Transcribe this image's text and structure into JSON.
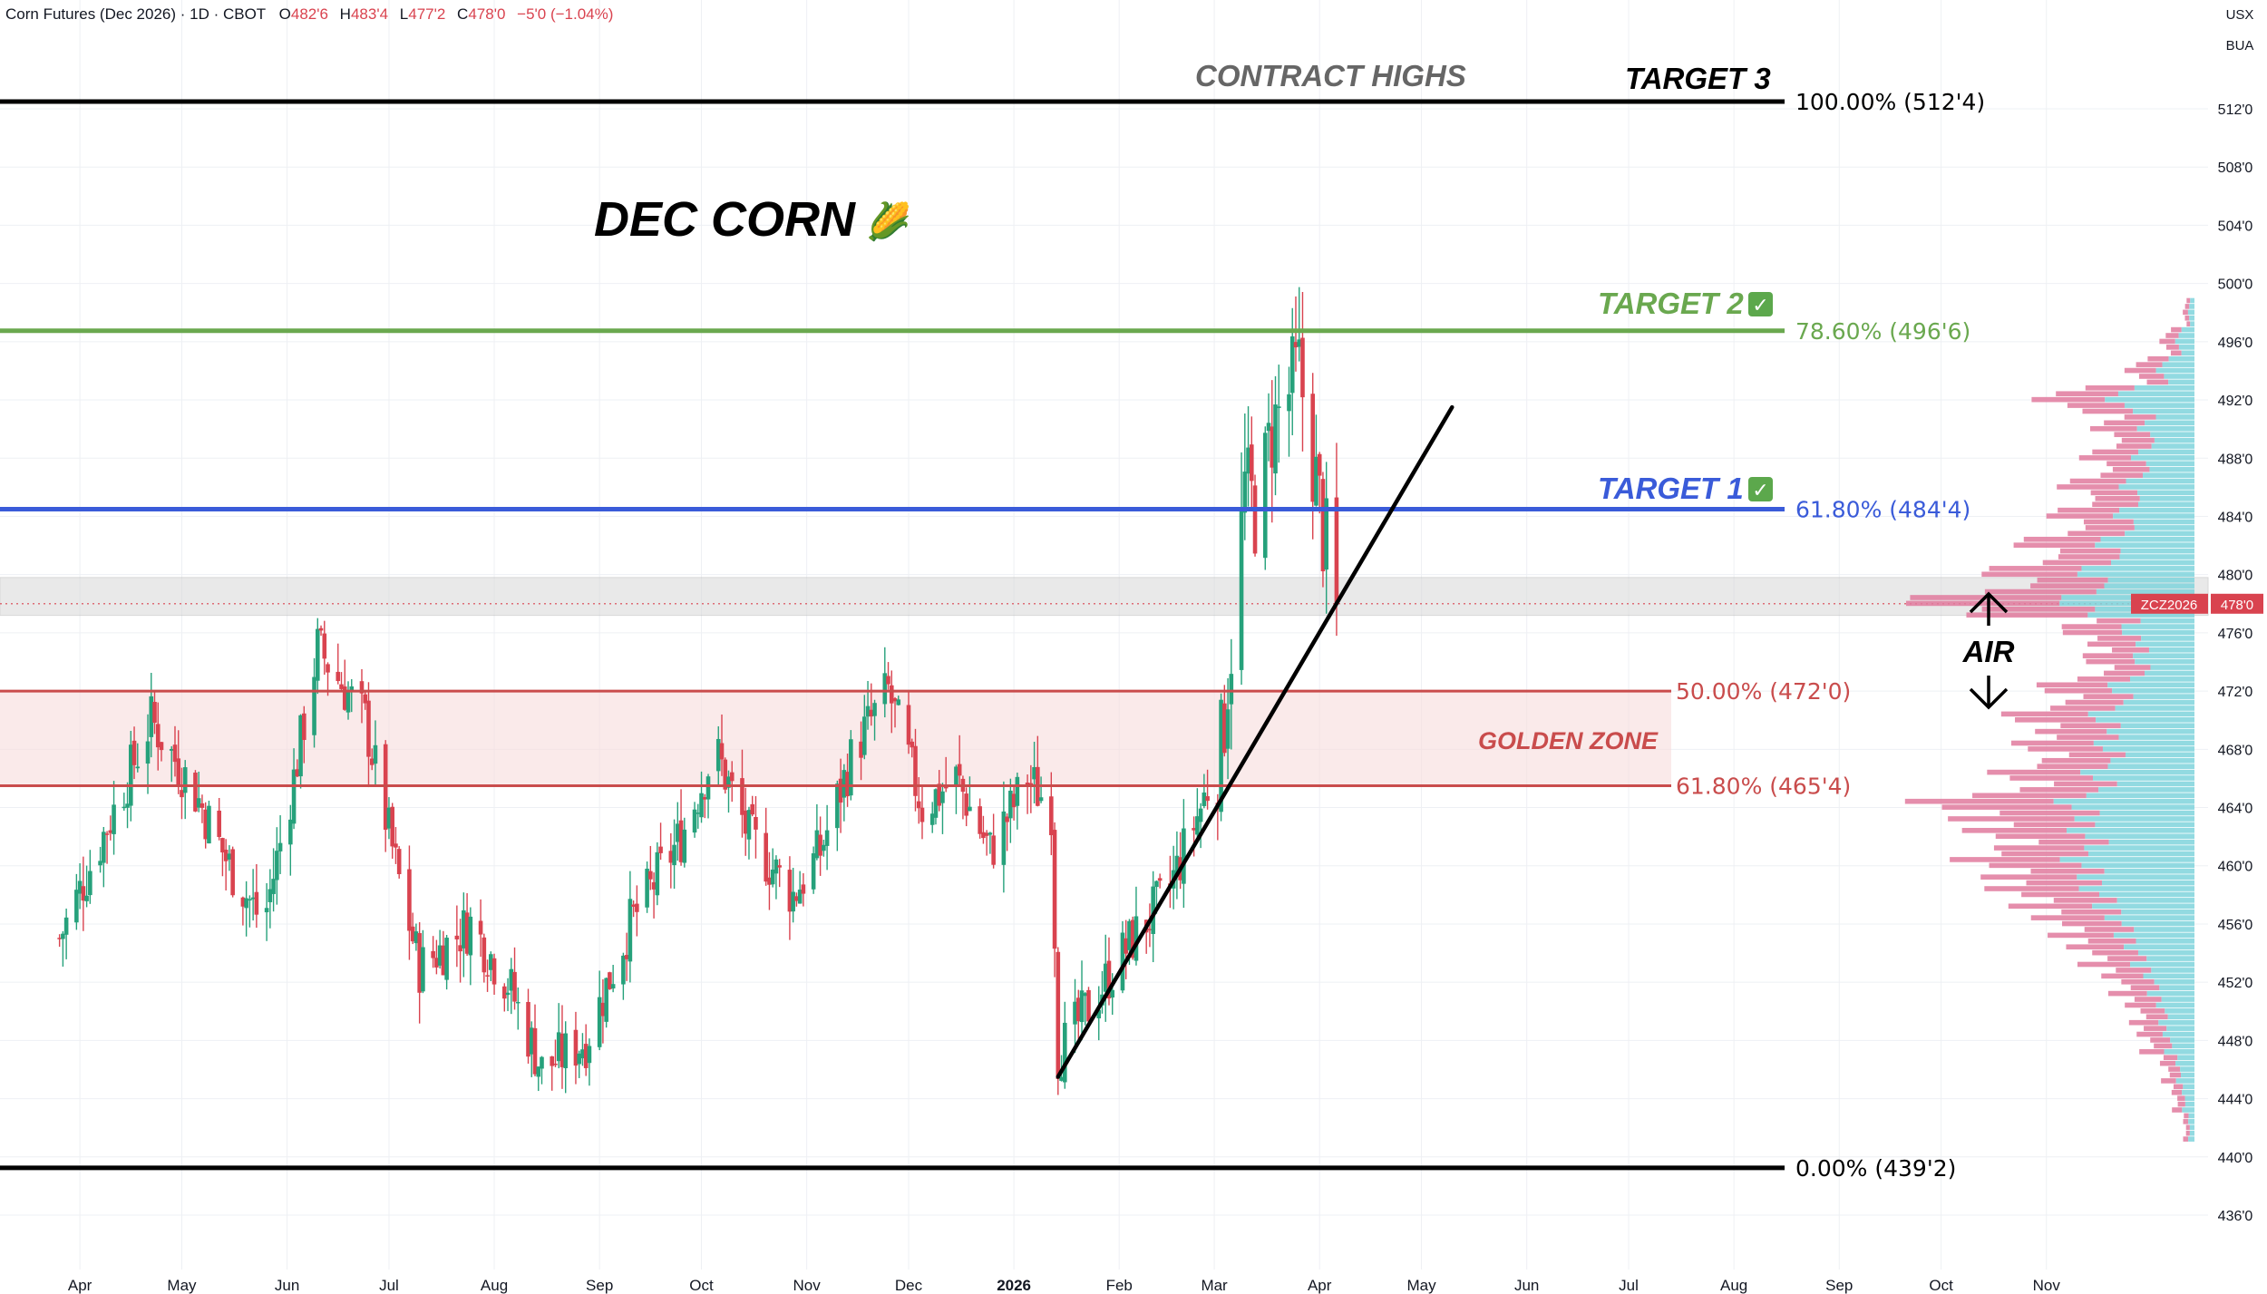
{
  "header": {
    "symbol_text": "Corn Futures (Dec 2026) · 1D · CBOT",
    "o_label": "O",
    "o_value": "482'6",
    "h_label": "H",
    "h_value": "483'4",
    "l_label": "L",
    "l_value": "477'2",
    "c_label": "C",
    "c_value": "478'0",
    "change": "−5'0 (−1.04%)",
    "currency": "USX",
    "unit": "BUA"
  },
  "annotations": {
    "title": "DEC CORN",
    "title_emoji": "🌽",
    "contract_highs": "CONTRACT HIGHS",
    "target3": "TARGET 3",
    "target2": "TARGET 2",
    "target1": "TARGET 1",
    "check": "✓",
    "golden_zone": "GOLDEN ZONE",
    "air": "AIR"
  },
  "levels": [
    {
      "id": "fib100",
      "label": "100.00% (512'4)",
      "price": 512.5,
      "color": "#000000"
    },
    {
      "id": "fib786",
      "label": "78.60% (496'6)",
      "price": 496.75,
      "color": "#6aa84f"
    },
    {
      "id": "fib618",
      "label": "61.80% (484'4)",
      "price": 484.5,
      "color": "#3a5bd9"
    },
    {
      "id": "fib50",
      "label": "50.00% (472'0)",
      "price": 472.0,
      "color": "#c94c4c"
    },
    {
      "id": "fib618b",
      "label": "61.80% (465'4)",
      "price": 465.5,
      "color": "#c94c4c"
    },
    {
      "id": "fib0",
      "label": "0.00% (439'2)",
      "price": 439.25,
      "color": "#000000"
    }
  ],
  "price_badge": {
    "symbol": "ZCZ2026",
    "price": "478'0",
    "value": 478.0
  },
  "colors": {
    "up": "#26a17b",
    "down": "#d9434f",
    "profile_buy": "#7fd3dc",
    "profile_sell": "#e07a9e",
    "grid": "#eef0f4"
  },
  "chart_data": {
    "type": "candlestick",
    "title": "Corn Futures (Dec 2026) · 1D · CBOT",
    "y_axis": {
      "ticks": [
        "512'0",
        "508'0",
        "504'0",
        "500'0",
        "496'0",
        "492'0",
        "488'0",
        "484'0",
        "480'0",
        "476'0",
        "472'0",
        "468'0",
        "464'0",
        "460'0",
        "456'0",
        "452'0",
        "448'0",
        "444'0",
        "440'0",
        "436'0"
      ],
      "tick_values": [
        512,
        508,
        504,
        500,
        496,
        492,
        488,
        484,
        480,
        476,
        472,
        468,
        464,
        460,
        456,
        452,
        448,
        444,
        440,
        436
      ],
      "range": [
        433,
        516.5
      ]
    },
    "x_axis": {
      "ticks": [
        "Apr",
        "May",
        "Jun",
        "Jul",
        "Aug",
        "Sep",
        "Oct",
        "Nov",
        "Dec",
        "2026",
        "Feb",
        "Mar",
        "Apr",
        "May",
        "Jun",
        "Jul",
        "Aug",
        "Sep",
        "Oct",
        "Nov"
      ],
      "bold_tick": "2026"
    },
    "price_path": [
      {
        "date": "2025-03-26",
        "close": 455
      },
      {
        "date": "2025-04-15",
        "close": 466
      },
      {
        "date": "2025-04-22",
        "close": 470
      },
      {
        "date": "2025-05-05",
        "close": 465
      },
      {
        "date": "2025-05-15",
        "close": 460
      },
      {
        "date": "2025-05-25",
        "close": 456
      },
      {
        "date": "2025-06-03",
        "close": 466
      },
      {
        "date": "2025-06-10",
        "close": 475
      },
      {
        "date": "2025-06-24",
        "close": 470
      },
      {
        "date": "2025-07-03",
        "close": 460
      },
      {
        "date": "2025-07-10",
        "close": 453
      },
      {
        "date": "2025-07-25",
        "close": 456
      },
      {
        "date": "2025-08-05",
        "close": 452
      },
      {
        "date": "2025-08-15",
        "close": 446
      },
      {
        "date": "2025-08-28",
        "close": 448
      },
      {
        "date": "2025-09-10",
        "close": 456
      },
      {
        "date": "2025-09-25",
        "close": 462
      },
      {
        "date": "2025-10-05",
        "close": 468
      },
      {
        "date": "2025-10-15",
        "close": 462
      },
      {
        "date": "2025-10-28",
        "close": 458
      },
      {
        "date": "2025-11-05",
        "close": 461
      },
      {
        "date": "2025-11-15",
        "close": 468
      },
      {
        "date": "2025-11-25",
        "close": 472
      },
      {
        "date": "2025-12-05",
        "close": 464
      },
      {
        "date": "2025-12-15",
        "close": 466
      },
      {
        "date": "2025-12-25",
        "close": 461
      },
      {
        "date": "2026-01-05",
        "close": 466
      },
      {
        "date": "2026-01-12",
        "close": 464
      },
      {
        "date": "2026-01-14",
        "close": 447
      },
      {
        "date": "2026-01-25",
        "close": 451
      },
      {
        "date": "2026-02-05",
        "close": 455
      },
      {
        "date": "2026-02-15",
        "close": 458
      },
      {
        "date": "2026-02-25",
        "close": 464
      },
      {
        "date": "2026-03-03",
        "close": 468
      },
      {
        "date": "2026-03-05",
        "close": 473
      },
      {
        "date": "2026-03-08",
        "close": 480
      },
      {
        "date": "2026-03-10",
        "close": 486
      },
      {
        "date": "2026-03-14",
        "close": 484
      },
      {
        "date": "2026-03-18",
        "close": 490
      },
      {
        "date": "2026-03-22",
        "close": 492
      },
      {
        "date": "2026-03-26",
        "close": 494
      },
      {
        "date": "2026-03-30",
        "close": 488
      },
      {
        "date": "2026-04-02",
        "close": 483
      },
      {
        "date": "2026-04-06",
        "close": 478
      }
    ],
    "series": [
      {
        "values": [
          {
            "price": 498,
            "volume": 1
          },
          {
            "price": 496,
            "volume": 3
          },
          {
            "price": 494,
            "volume": 6
          },
          {
            "price": 492,
            "volume": 14
          },
          {
            "price": 490,
            "volume": 9
          },
          {
            "price": 488,
            "volume": 10
          },
          {
            "price": 486,
            "volume": 12
          },
          {
            "price": 484,
            "volume": 13
          },
          {
            "price": 482,
            "volume": 16
          },
          {
            "price": 480,
            "volume": 19
          },
          {
            "price": 478,
            "volume": 26
          },
          {
            "price": 476,
            "volume": 12
          },
          {
            "price": 474,
            "volume": 10
          },
          {
            "price": 472,
            "volume": 14
          },
          {
            "price": 470,
            "volume": 17
          },
          {
            "price": 468,
            "volume": 16
          },
          {
            "price": 466,
            "volume": 18
          },
          {
            "price": 464,
            "volume": 25
          },
          {
            "price": 462,
            "volume": 20
          },
          {
            "price": 460,
            "volume": 21
          },
          {
            "price": 458,
            "volume": 18
          },
          {
            "price": 456,
            "volume": 14
          },
          {
            "price": 454,
            "volume": 11
          },
          {
            "price": 452,
            "volume": 8
          },
          {
            "price": 450,
            "volume": 6
          },
          {
            "price": 448,
            "volume": 5
          },
          {
            "price": 446,
            "volume": 3
          },
          {
            "price": 444,
            "volume": 2
          },
          {
            "price": 442,
            "volume": 1
          }
        ]
      }
    ],
    "trendline": {
      "start": {
        "date": "2026-01-14",
        "price": 445.5
      },
      "end": {
        "date": "2026-05-10",
        "price": 491.5
      }
    },
    "golden_zone": [
      465.5,
      472.0
    ],
    "gray_zone": [
      477.2,
      479.8
    ]
  }
}
